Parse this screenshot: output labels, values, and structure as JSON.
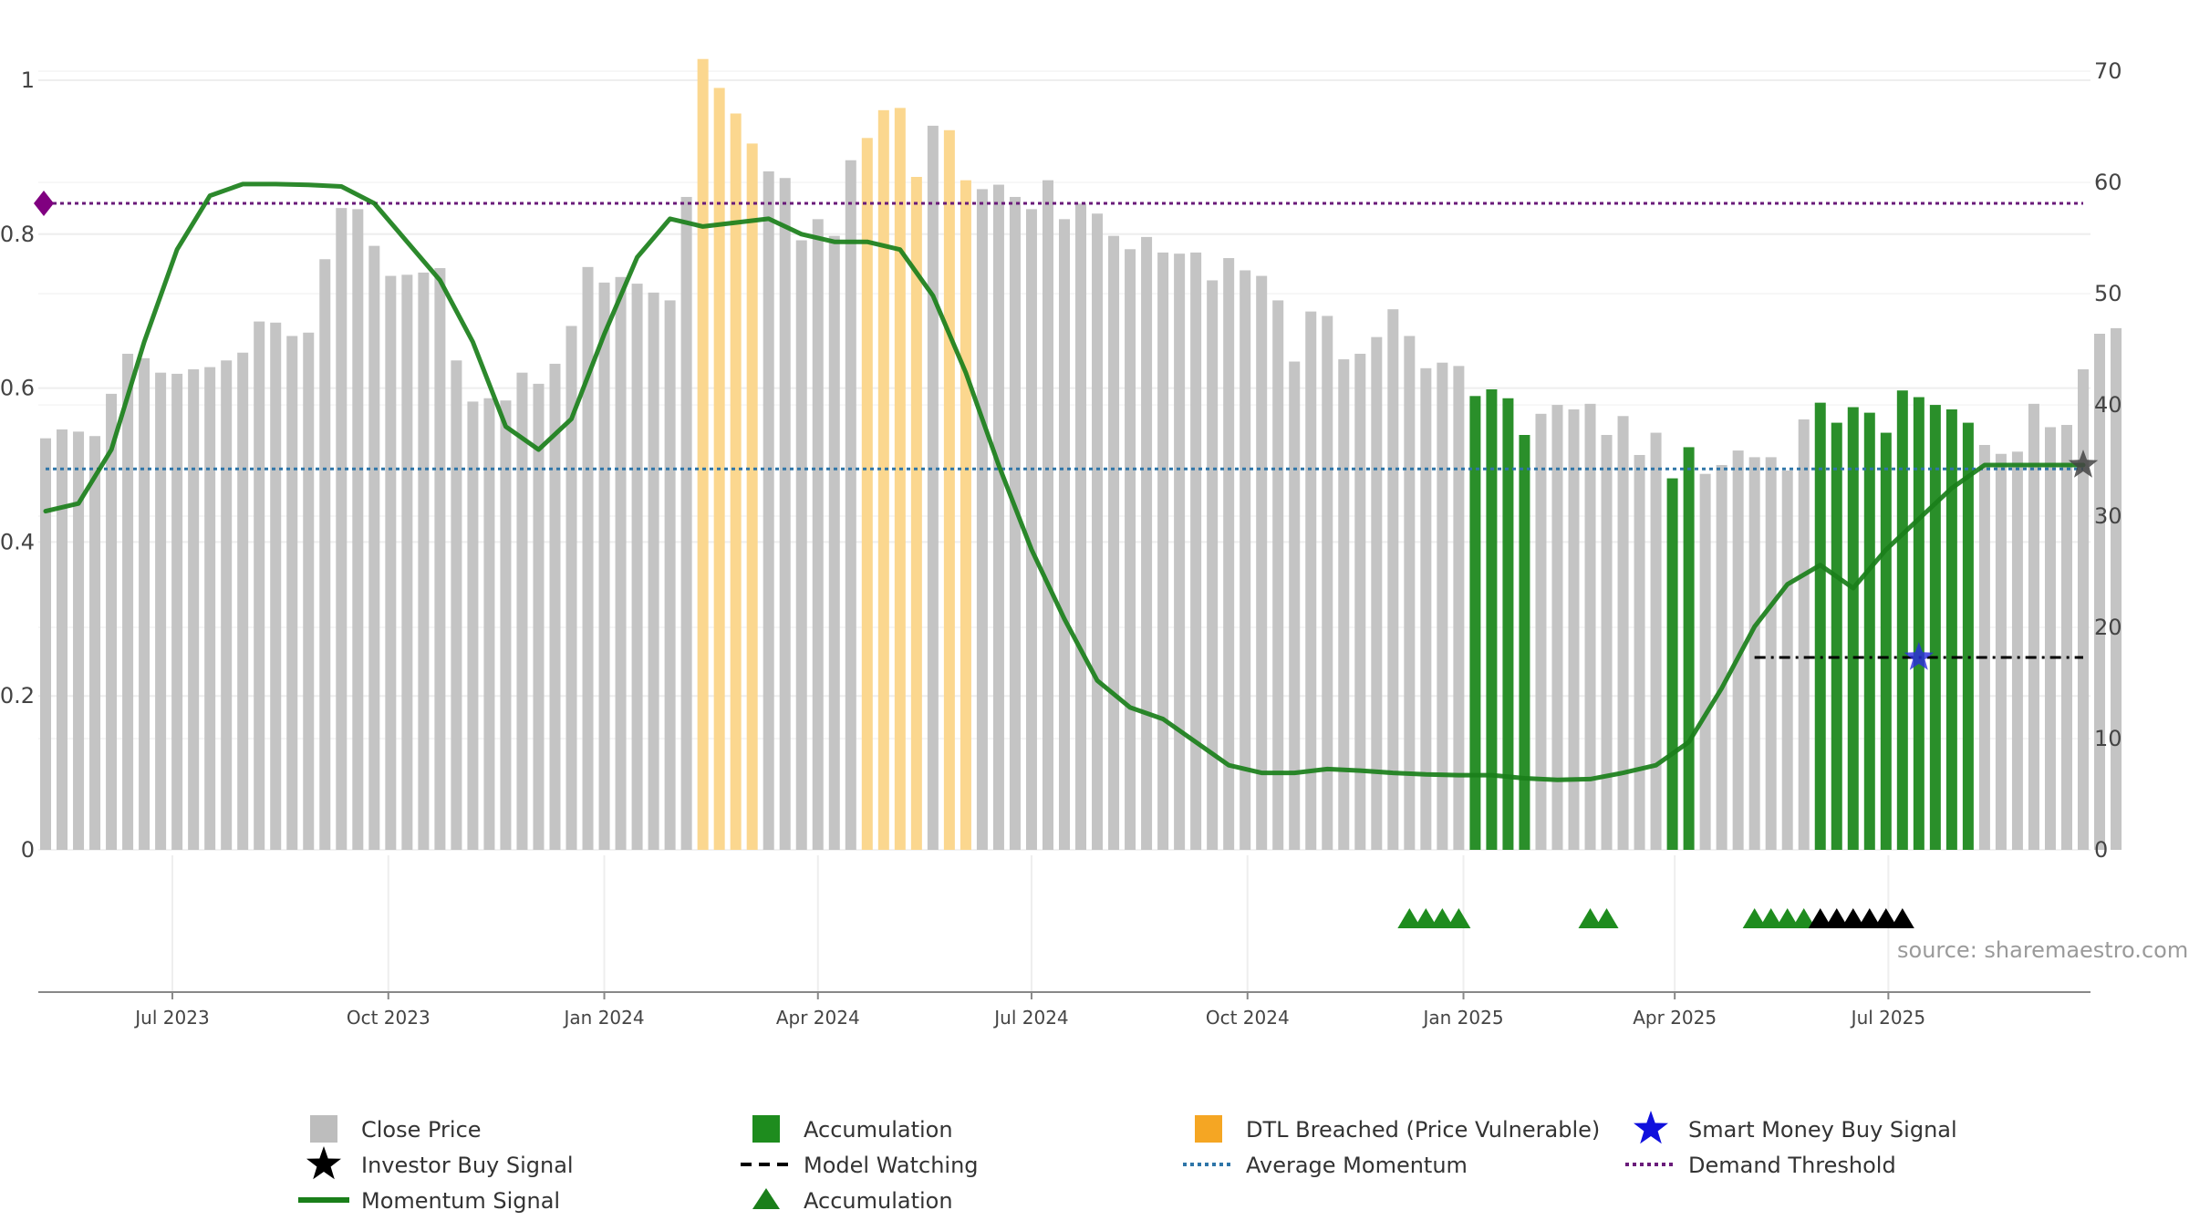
{
  "chart_data": {
    "type": "bar",
    "subtype": "combo-bar-line-signals",
    "watermark": "source: sharemaestro.com",
    "left_axis": {
      "ticks": [
        0,
        0.2,
        0.4,
        0.6,
        0.8,
        1
      ],
      "tick_labels": [
        "0",
        "0.2",
        "0.4",
        "0.6",
        "0.8",
        "1"
      ],
      "ylim": [
        0,
        1
      ]
    },
    "right_axis": {
      "ticks": [
        0,
        10,
        20,
        30,
        40,
        50,
        60,
        70
      ],
      "tick_labels": [
        "0",
        "10",
        "20",
        "30",
        "40",
        "50",
        "60",
        "70"
      ],
      "ylim": [
        0,
        74
      ]
    },
    "x_axis": {
      "range": [
        "2023-05-08",
        "2025-09-22"
      ],
      "ticks": [
        "2023-07-01",
        "2023-10-01",
        "2024-01-01",
        "2024-04-01",
        "2024-07-01",
        "2024-10-01",
        "2025-01-01",
        "2025-04-01",
        "2025-07-01"
      ],
      "tick_labels": [
        "Jul 2023",
        "Oct 2023",
        "Jan 2024",
        "Apr 2024",
        "Jul 2024",
        "Oct 2024",
        "Jan 2025",
        "Apr 2025",
        "Jul 2025"
      ]
    },
    "bars": {
      "start": "2023-05-08",
      "interval_days": 7,
      "close_price": [
        37.0,
        37.8,
        37.6,
        37.2,
        41.0,
        44.6,
        44.2,
        42.9,
        42.8,
        43.2,
        43.4,
        44.0,
        44.7,
        47.5,
        47.4,
        46.2,
        46.5,
        53.1,
        57.7,
        57.6,
        54.3,
        51.6,
        51.7,
        51.9,
        52.3,
        44.0,
        40.3,
        40.6,
        40.4,
        42.9,
        41.9,
        43.7,
        47.1,
        52.4,
        51.0,
        51.5,
        50.9,
        50.1,
        49.4,
        58.7,
        71.1,
        68.5,
        66.2,
        63.5,
        61.0,
        60.4,
        54.8,
        56.7,
        55.2,
        62.0,
        64.0,
        66.5,
        66.7,
        60.5,
        65.1,
        64.7,
        60.2,
        59.4,
        59.8,
        58.7,
        57.6,
        60.2,
        56.7,
        58.1,
        57.2,
        55.2,
        54.0,
        55.1,
        53.7,
        53.6,
        53.7,
        51.2,
        53.2,
        52.1,
        51.6,
        49.4,
        43.9,
        48.4,
        48.0,
        44.1,
        44.6,
        46.1,
        48.6,
        46.2,
        43.3,
        43.8,
        43.5,
        40.8,
        41.4,
        40.6,
        37.3,
        39.2,
        40.0,
        39.6,
        40.1,
        37.3,
        39.0,
        35.5,
        37.5,
        33.4,
        36.2,
        33.8,
        34.6,
        35.9,
        35.3,
        35.3,
        34.1,
        38.7,
        40.2,
        38.4,
        39.8,
        39.3,
        37.5,
        41.3,
        40.7,
        40.0,
        39.6,
        38.4,
        36.4,
        35.6,
        35.8,
        40.1,
        38.0,
        38.2,
        43.2,
        46.4,
        46.9
      ],
      "category": [
        "p",
        "p",
        "p",
        "p",
        "p",
        "p",
        "p",
        "p",
        "p",
        "p",
        "p",
        "p",
        "p",
        "p",
        "p",
        "p",
        "p",
        "p",
        "p",
        "p",
        "p",
        "p",
        "p",
        "p",
        "p",
        "p",
        "p",
        "p",
        "p",
        "p",
        "p",
        "p",
        "p",
        "p",
        "p",
        "p",
        "p",
        "p",
        "p",
        "p",
        "d",
        "d",
        "d",
        "d",
        "p",
        "p",
        "p",
        "p",
        "p",
        "p",
        "d",
        "d",
        "d",
        "d",
        "p",
        "d",
        "d",
        "p",
        "p",
        "p",
        "p",
        "p",
        "p",
        "p",
        "p",
        "p",
        "p",
        "p",
        "p",
        "p",
        "p",
        "p",
        "p",
        "p",
        "p",
        "p",
        "p",
        "p",
        "p",
        "p",
        "p",
        "p",
        "p",
        "p",
        "p",
        "p",
        "p",
        "a",
        "a",
        "a",
        "a",
        "p",
        "p",
        "p",
        "p",
        "p",
        "p",
        "p",
        "p",
        "a",
        "a",
        "p",
        "p",
        "p",
        "p",
        "p",
        "p",
        "p",
        "a",
        "a",
        "a",
        "a",
        "a",
        "a",
        "a",
        "a",
        "a",
        "a",
        "p",
        "p",
        "p",
        "p",
        "p",
        "p",
        "p",
        "p",
        "p",
        "p",
        "p",
        "p",
        "p"
      ],
      "category_legend": {
        "p": "Close Price",
        "a": "Accumulation",
        "d": "DTL Breached (Price Vulnerable)"
      }
    },
    "momentum_signal": {
      "name": "Momentum Signal",
      "x": [
        "2023-05-08",
        "2023-05-22",
        "2023-06-05",
        "2023-06-19",
        "2023-07-03",
        "2023-07-17",
        "2023-07-31",
        "2023-08-14",
        "2023-08-28",
        "2023-09-11",
        "2023-09-25",
        "2023-10-09",
        "2023-10-23",
        "2023-11-06",
        "2023-11-20",
        "2023-12-04",
        "2023-12-18",
        "2024-01-01",
        "2024-01-15",
        "2024-01-29",
        "2024-02-12",
        "2024-02-26",
        "2024-03-11",
        "2024-03-25",
        "2024-04-08",
        "2024-04-22",
        "2024-05-06",
        "2024-05-20",
        "2024-06-03",
        "2024-06-17",
        "2024-07-01",
        "2024-07-15",
        "2024-07-29",
        "2024-08-12",
        "2024-08-26",
        "2024-09-09",
        "2024-09-23",
        "2024-10-07",
        "2024-10-21",
        "2024-11-04",
        "2024-11-18",
        "2024-12-02",
        "2024-12-16",
        "2024-12-30",
        "2025-01-13",
        "2025-01-27",
        "2025-02-10",
        "2025-02-24",
        "2025-03-10",
        "2025-03-24",
        "2025-04-07",
        "2025-04-21",
        "2025-05-05",
        "2025-05-19",
        "2025-06-02",
        "2025-06-16",
        "2025-06-30",
        "2025-07-14",
        "2025-07-28",
        "2025-08-11",
        "2025-08-18",
        "2025-08-25",
        "2025-09-08",
        "2025-09-22"
      ],
      "y": [
        0.44,
        0.45,
        0.52,
        0.66,
        0.78,
        0.85,
        0.865,
        0.865,
        0.864,
        0.862,
        0.84,
        0.79,
        0.74,
        0.66,
        0.55,
        0.52,
        0.56,
        0.67,
        0.77,
        0.82,
        0.81,
        0.815,
        0.82,
        0.8,
        0.79,
        0.79,
        0.78,
        0.72,
        0.62,
        0.5,
        0.39,
        0.3,
        0.22,
        0.185,
        0.17,
        0.14,
        0.11,
        0.1,
        0.1,
        0.105,
        0.103,
        0.1,
        0.098,
        0.097,
        0.097,
        0.093,
        0.091,
        0.092,
        0.1,
        0.11,
        0.14,
        0.21,
        0.29,
        0.345,
        0.37,
        0.34,
        0.39,
        0.43,
        0.47,
        0.5,
        0.5,
        0.5,
        0.5,
        0.5
      ]
    },
    "average_momentum": {
      "name": "Average Momentum",
      "y": 0.495
    },
    "demand_threshold": {
      "name": "Demand Threshold",
      "y": 0.84
    },
    "model_watching": {
      "name": "Model Watching",
      "y": 0.25,
      "x_start": "2025-05-05",
      "x_end": "2025-09-22"
    },
    "smart_money_buy_signal": {
      "name": "Smart Money Buy Signal",
      "x": "2025-07-14",
      "y": 0.25
    },
    "investor_buy_signal": {
      "name": "Investor Buy Signal",
      "x": "2025-09-22",
      "y": 0.5
    },
    "demand_marker": {
      "x": "2023-05-08",
      "y": 0.84
    },
    "accumulation_triangles": [
      {
        "x": "2024-12-09",
        "color": "green"
      },
      {
        "x": "2024-12-16",
        "color": "green"
      },
      {
        "x": "2024-12-23",
        "color": "green"
      },
      {
        "x": "2024-12-30",
        "color": "green"
      },
      {
        "x": "2025-02-24",
        "color": "green"
      },
      {
        "x": "2025-03-03",
        "color": "green"
      },
      {
        "x": "2025-05-05",
        "color": "green"
      },
      {
        "x": "2025-05-12",
        "color": "green"
      },
      {
        "x": "2025-05-19",
        "color": "green"
      },
      {
        "x": "2025-05-26",
        "color": "green"
      },
      {
        "x": "2025-06-02",
        "color": "black"
      },
      {
        "x": "2025-06-09",
        "color": "black"
      },
      {
        "x": "2025-06-16",
        "color": "black"
      },
      {
        "x": "2025-06-23",
        "color": "black"
      },
      {
        "x": "2025-06-30",
        "color": "black"
      },
      {
        "x": "2025-07-07",
        "color": "black"
      }
    ],
    "legend": [
      {
        "label": "Close Price",
        "swatch": "square",
        "color": "#bdbdbd"
      },
      {
        "label": "Accumulation",
        "swatch": "square",
        "color": "#1e8c1e"
      },
      {
        "label": "DTL Breached (Price Vulnerable)",
        "swatch": "square",
        "color": "#f5a623"
      },
      {
        "label": "Smart Money Buy Signal",
        "swatch": "star",
        "color": "#1010dd"
      },
      {
        "label": "Investor Buy Signal",
        "swatch": "star",
        "color": "#000000"
      },
      {
        "label": "Model Watching",
        "swatch": "dash",
        "color": "#000000"
      },
      {
        "label": "Average Momentum",
        "swatch": "dot",
        "color": "#2e75a8"
      },
      {
        "label": "Demand Threshold",
        "swatch": "dot",
        "color": "#6a1b7a"
      },
      {
        "label": "Momentum Signal",
        "swatch": "line",
        "color": "#1a7f1a"
      },
      {
        "label": "Accumulation",
        "swatch": "triangle",
        "color": "#1a7f1a"
      }
    ],
    "colors": {
      "close_price": "#c4c4c4",
      "accumulation": "#2a8f2a",
      "dtl_breached": "#fbd78f",
      "momentum": "#1a7f1a",
      "average_momentum": "#2e75a8",
      "demand_threshold": "#6a1b7a",
      "smart_money": "#2a2ae0",
      "investor": "#444444",
      "grid": "#eeeeee",
      "axis": "#888888"
    }
  }
}
